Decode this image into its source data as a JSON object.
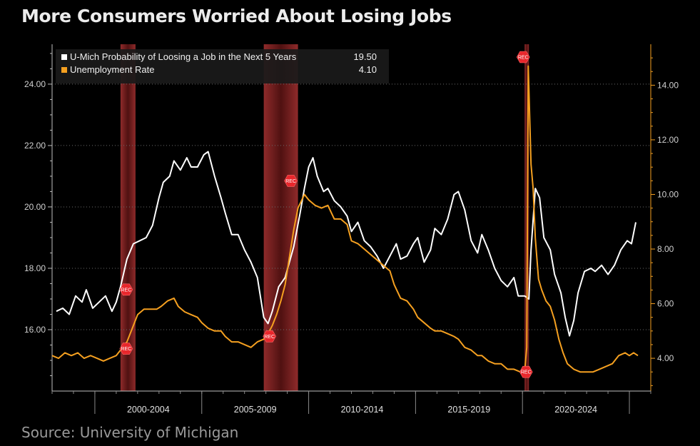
{
  "title": "More Consumers Worried About Losing Jobs",
  "source": "Source: University of Michigan",
  "chart_data": {
    "type": "line",
    "left_axis": {
      "ticks": [
        "16.00",
        "18.00",
        "20.00",
        "22.00",
        "24.00"
      ],
      "tick_values": [
        16,
        18,
        20,
        22,
        24
      ],
      "range": [
        14.0,
        25.3
      ]
    },
    "right_axis": {
      "ticks": [
        "4.00",
        "6.00",
        "8.00",
        "10.00",
        "12.00",
        "14.00"
      ],
      "tick_values": [
        4,
        6,
        8,
        10,
        12,
        14
      ],
      "range": [
        2.8,
        15.5
      ]
    },
    "x_range": [
      1998.0,
      2026.0
    ],
    "period_labels": [
      "2000-2004",
      "2005-2009",
      "2010-2014",
      "2015-2019",
      "2020-2024"
    ],
    "period_boundaries": [
      2000.0,
      2005.0,
      2010.0,
      2015.0,
      2020.0,
      2025.0
    ],
    "recessions": [
      {
        "start": 2001.2,
        "end": 2001.9
      },
      {
        "start": 2007.9,
        "end": 2009.5
      },
      {
        "start": 2020.1,
        "end": 2020.3
      }
    ],
    "recession_label": "REC",
    "series": [
      {
        "name": "U-Mich Probability of Loosing a Job in the Next 5 Years",
        "last": "19.50",
        "axis": "left",
        "color": "#ffffff",
        "points": [
          [
            1998.2,
            16.6
          ],
          [
            1998.5,
            16.7
          ],
          [
            1998.8,
            16.5
          ],
          [
            1999.1,
            17.1
          ],
          [
            1999.4,
            16.9
          ],
          [
            1999.6,
            17.3
          ],
          [
            1999.9,
            16.7
          ],
          [
            2000.2,
            16.9
          ],
          [
            2000.5,
            17.1
          ],
          [
            2000.8,
            16.6
          ],
          [
            2001.0,
            16.9
          ],
          [
            2001.2,
            17.4
          ],
          [
            2001.5,
            18.3
          ],
          [
            2001.8,
            18.8
          ],
          [
            2002.1,
            18.9
          ],
          [
            2002.4,
            19.0
          ],
          [
            2002.7,
            19.4
          ],
          [
            2003.0,
            20.3
          ],
          [
            2003.2,
            20.8
          ],
          [
            2003.5,
            21.0
          ],
          [
            2003.7,
            21.5
          ],
          [
            2004.0,
            21.2
          ],
          [
            2004.3,
            21.6
          ],
          [
            2004.5,
            21.3
          ],
          [
            2004.8,
            21.3
          ],
          [
            2005.1,
            21.7
          ],
          [
            2005.3,
            21.8
          ],
          [
            2005.6,
            21.0
          ],
          [
            2005.9,
            20.3
          ],
          [
            2006.1,
            19.8
          ],
          [
            2006.4,
            19.1
          ],
          [
            2006.7,
            19.1
          ],
          [
            2007.0,
            18.6
          ],
          [
            2007.3,
            18.2
          ],
          [
            2007.6,
            17.7
          ],
          [
            2007.9,
            16.4
          ],
          [
            2008.1,
            16.2
          ],
          [
            2008.3,
            16.6
          ],
          [
            2008.6,
            17.4
          ],
          [
            2008.9,
            17.7
          ],
          [
            2009.1,
            18.2
          ],
          [
            2009.3,
            18.7
          ],
          [
            2009.6,
            19.8
          ],
          [
            2009.8,
            20.6
          ],
          [
            2010.0,
            21.3
          ],
          [
            2010.2,
            21.6
          ],
          [
            2010.4,
            21.0
          ],
          [
            2010.7,
            20.5
          ],
          [
            2010.9,
            20.6
          ],
          [
            2011.2,
            20.2
          ],
          [
            2011.5,
            20.0
          ],
          [
            2011.8,
            19.7
          ],
          [
            2012.0,
            19.2
          ],
          [
            2012.3,
            19.5
          ],
          [
            2012.6,
            18.9
          ],
          [
            2012.9,
            18.7
          ],
          [
            2013.2,
            18.4
          ],
          [
            2013.5,
            18.0
          ],
          [
            2013.8,
            18.4
          ],
          [
            2014.1,
            18.8
          ],
          [
            2014.3,
            18.3
          ],
          [
            2014.6,
            18.4
          ],
          [
            2014.9,
            18.8
          ],
          [
            2015.1,
            19.0
          ],
          [
            2015.4,
            18.2
          ],
          [
            2015.7,
            18.6
          ],
          [
            2015.9,
            19.3
          ],
          [
            2016.2,
            19.1
          ],
          [
            2016.5,
            19.6
          ],
          [
            2016.8,
            20.4
          ],
          [
            2017.0,
            20.5
          ],
          [
            2017.3,
            19.9
          ],
          [
            2017.6,
            18.9
          ],
          [
            2017.9,
            18.5
          ],
          [
            2018.1,
            19.1
          ],
          [
            2018.4,
            18.6
          ],
          [
            2018.7,
            18.0
          ],
          [
            2019.0,
            17.6
          ],
          [
            2019.3,
            17.4
          ],
          [
            2019.6,
            17.7
          ],
          [
            2019.8,
            17.1
          ],
          [
            2020.1,
            17.1
          ],
          [
            2020.3,
            17.0
          ],
          [
            2020.4,
            18.6
          ],
          [
            2020.6,
            20.6
          ],
          [
            2020.8,
            20.3
          ],
          [
            2021.0,
            19.0
          ],
          [
            2021.3,
            18.6
          ],
          [
            2021.5,
            17.8
          ],
          [
            2021.8,
            17.2
          ],
          [
            2022.0,
            16.4
          ],
          [
            2022.2,
            15.8
          ],
          [
            2022.4,
            16.3
          ],
          [
            2022.6,
            17.2
          ],
          [
            2022.9,
            17.9
          ],
          [
            2023.2,
            18.0
          ],
          [
            2023.4,
            17.9
          ],
          [
            2023.7,
            18.1
          ],
          [
            2024.0,
            17.8
          ],
          [
            2024.3,
            18.1
          ],
          [
            2024.6,
            18.6
          ],
          [
            2024.9,
            18.9
          ],
          [
            2025.1,
            18.8
          ],
          [
            2025.3,
            19.5
          ]
        ]
      },
      {
        "name": "Unemployment Rate",
        "last": "4.10",
        "axis": "right",
        "color": "#f5a020",
        "points": [
          [
            1998.0,
            4.1
          ],
          [
            1998.3,
            4.0
          ],
          [
            1998.6,
            4.2
          ],
          [
            1998.9,
            4.1
          ],
          [
            1999.2,
            4.2
          ],
          [
            1999.5,
            4.0
          ],
          [
            1999.8,
            4.1
          ],
          [
            2000.1,
            4.0
          ],
          [
            2000.4,
            3.9
          ],
          [
            2000.7,
            4.0
          ],
          [
            2001.0,
            4.1
          ],
          [
            2001.2,
            4.3
          ],
          [
            2001.5,
            4.6
          ],
          [
            2001.8,
            5.2
          ],
          [
            2002.0,
            5.6
          ],
          [
            2002.3,
            5.8
          ],
          [
            2002.6,
            5.8
          ],
          [
            2002.9,
            5.8
          ],
          [
            2003.1,
            5.9
          ],
          [
            2003.4,
            6.1
          ],
          [
            2003.7,
            6.2
          ],
          [
            2003.9,
            5.9
          ],
          [
            2004.2,
            5.7
          ],
          [
            2004.5,
            5.6
          ],
          [
            2004.8,
            5.5
          ],
          [
            2005.0,
            5.3
          ],
          [
            2005.3,
            5.1
          ],
          [
            2005.6,
            5.0
          ],
          [
            2005.9,
            5.0
          ],
          [
            2006.1,
            4.8
          ],
          [
            2006.4,
            4.6
          ],
          [
            2006.7,
            4.6
          ],
          [
            2007.0,
            4.5
          ],
          [
            2007.3,
            4.4
          ],
          [
            2007.6,
            4.6
          ],
          [
            2007.9,
            4.7
          ],
          [
            2008.1,
            4.9
          ],
          [
            2008.3,
            5.2
          ],
          [
            2008.5,
            5.6
          ],
          [
            2008.7,
            6.1
          ],
          [
            2008.9,
            6.7
          ],
          [
            2009.1,
            7.7
          ],
          [
            2009.3,
            8.7
          ],
          [
            2009.5,
            9.5
          ],
          [
            2009.8,
            10.0
          ],
          [
            2010.0,
            9.8
          ],
          [
            2010.3,
            9.6
          ],
          [
            2010.6,
            9.5
          ],
          [
            2010.9,
            9.6
          ],
          [
            2011.2,
            9.1
          ],
          [
            2011.5,
            9.1
          ],
          [
            2011.8,
            8.9
          ],
          [
            2012.0,
            8.3
          ],
          [
            2012.3,
            8.2
          ],
          [
            2012.6,
            8.0
          ],
          [
            2012.9,
            7.8
          ],
          [
            2013.2,
            7.6
          ],
          [
            2013.5,
            7.4
          ],
          [
            2013.8,
            7.2
          ],
          [
            2014.0,
            6.7
          ],
          [
            2014.3,
            6.2
          ],
          [
            2014.6,
            6.1
          ],
          [
            2014.9,
            5.8
          ],
          [
            2015.1,
            5.5
          ],
          [
            2015.4,
            5.3
          ],
          [
            2015.7,
            5.1
          ],
          [
            2015.9,
            5.0
          ],
          [
            2016.2,
            5.0
          ],
          [
            2016.5,
            4.9
          ],
          [
            2016.8,
            4.8
          ],
          [
            2017.0,
            4.7
          ],
          [
            2017.3,
            4.4
          ],
          [
            2017.6,
            4.3
          ],
          [
            2017.9,
            4.1
          ],
          [
            2018.1,
            4.1
          ],
          [
            2018.4,
            3.9
          ],
          [
            2018.7,
            3.8
          ],
          [
            2019.0,
            3.8
          ],
          [
            2019.3,
            3.6
          ],
          [
            2019.6,
            3.6
          ],
          [
            2019.9,
            3.5
          ],
          [
            2020.1,
            3.5
          ],
          [
            2020.2,
            4.4
          ],
          [
            2020.27,
            14.7
          ],
          [
            2020.4,
            11.1
          ],
          [
            2020.5,
            10.2
          ],
          [
            2020.6,
            8.4
          ],
          [
            2020.75,
            6.9
          ],
          [
            2020.9,
            6.5
          ],
          [
            2021.1,
            6.1
          ],
          [
            2021.3,
            5.9
          ],
          [
            2021.5,
            5.4
          ],
          [
            2021.7,
            4.7
          ],
          [
            2021.9,
            4.2
          ],
          [
            2022.1,
            3.8
          ],
          [
            2022.4,
            3.6
          ],
          [
            2022.7,
            3.5
          ],
          [
            2023.0,
            3.5
          ],
          [
            2023.3,
            3.5
          ],
          [
            2023.6,
            3.6
          ],
          [
            2023.9,
            3.7
          ],
          [
            2024.2,
            3.8
          ],
          [
            2024.5,
            4.1
          ],
          [
            2024.8,
            4.2
          ],
          [
            2025.0,
            4.1
          ],
          [
            2025.2,
            4.2
          ],
          [
            2025.4,
            4.1
          ]
        ]
      }
    ],
    "legend": {
      "placement": "top-left"
    }
  }
}
